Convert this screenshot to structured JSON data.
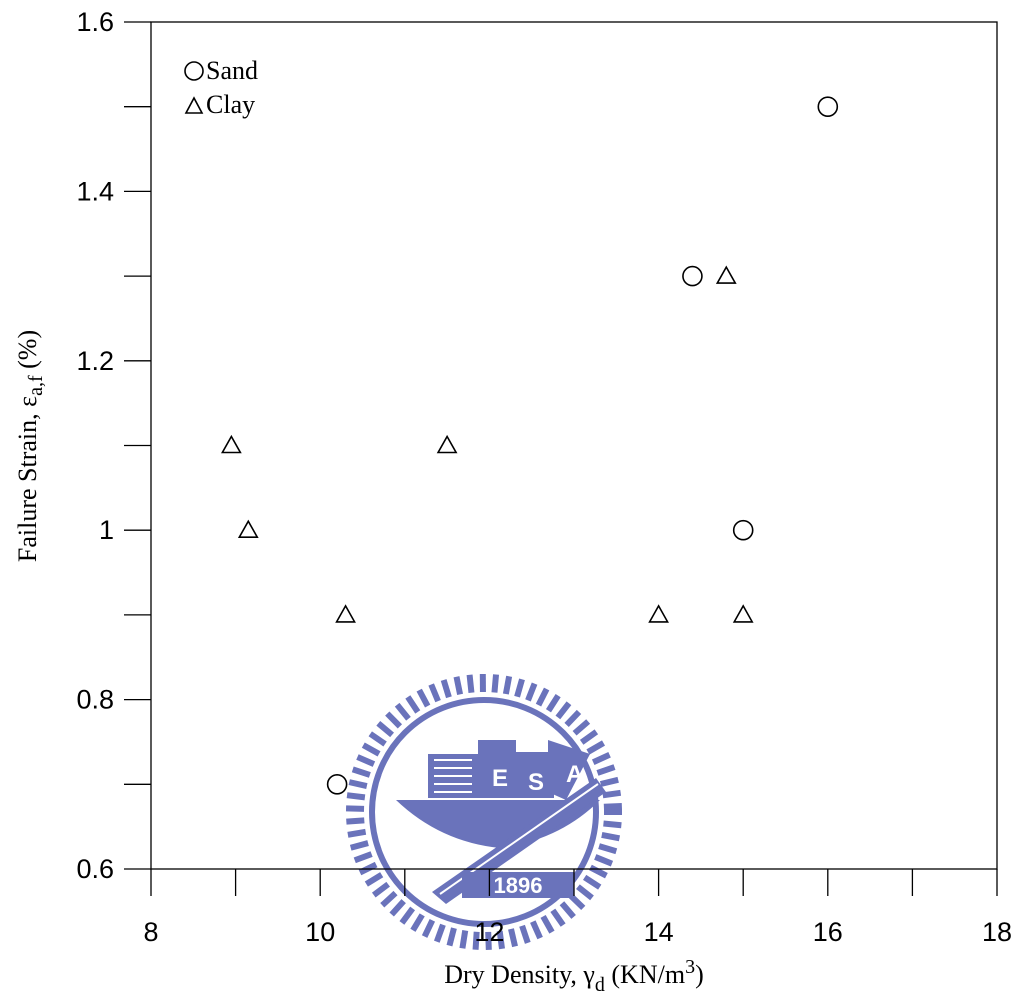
{
  "chart_data": {
    "type": "scatter",
    "xlabel": {
      "prefix": "Dry Density, ",
      "symbol": "γ",
      "subscript": "d",
      "middle": " (KN/m",
      "superscript": "3",
      "suffix": ")"
    },
    "ylabel": {
      "prefix": "Failure Strain, ",
      "symbol": "ε",
      "subscript": "a,f",
      "suffix": "  (%)"
    },
    "xlim": [
      8,
      18
    ],
    "ylim": [
      0.6,
      1.6
    ],
    "x_ticks": [
      "8",
      "10",
      "12",
      "14",
      "16",
      "18"
    ],
    "y_ticks": [
      "0.6",
      "0.8",
      "1",
      "1.2",
      "1.4",
      "1.6"
    ],
    "legend_position": "top-left",
    "grid": false,
    "series": [
      {
        "name": "Sand",
        "marker": "circle",
        "x": [
          10.2,
          14.4,
          15.0,
          16.0
        ],
        "y": [
          0.7,
          1.3,
          1.0,
          1.5
        ]
      },
      {
        "name": "Clay",
        "marker": "triangle",
        "x": [
          8.95,
          9.15,
          10.3,
          11.5,
          14.0,
          14.8,
          15.0
        ],
        "y": [
          1.1,
          1.0,
          0.9,
          1.1,
          0.9,
          1.3,
          0.9
        ]
      }
    ],
    "watermark": {
      "kind": "university seal",
      "text_letters": [
        "E",
        "S",
        "A"
      ],
      "year": "1896",
      "color": "#5a64b4"
    }
  }
}
